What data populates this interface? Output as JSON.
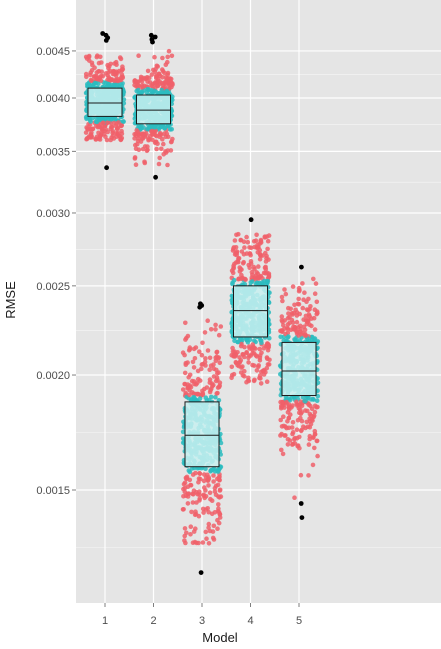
{
  "chart_data": {
    "type": "boxplot-jitter",
    "xlabel": "Model",
    "ylabel": "RMSE",
    "y_scale": "log",
    "ylim": [
      0.0011,
      0.0047
    ],
    "categories": [
      "1",
      "2",
      "3",
      "4",
      "5"
    ],
    "y_ticks": [
      0.0015,
      0.002,
      0.0025,
      0.003,
      0.0035,
      0.004,
      0.0045
    ],
    "y_tick_labels": [
      "0.0015",
      "0.0020",
      "0.0025",
      "0.0030",
      "0.0035",
      "0.0040",
      "0.0045"
    ],
    "grid": true,
    "colors": {
      "panel_bg": "#e5e5e5",
      "grid": "#ffffff",
      "inner_points": "#2cbcbf",
      "outer_points": "#f0606a",
      "outliers": "#000000",
      "box_fill": "#c8f0f0",
      "box_stroke": "#1a1a1a"
    },
    "boxes": [
      {
        "category": "1",
        "min": 0.00336,
        "q1": 0.00382,
        "median": 0.00395,
        "q3": 0.0041,
        "max": 0.0047,
        "whisker_low": 0.0036,
        "whisker_high": 0.00445,
        "outliers": [
          0.00336,
          0.00462,
          0.00465,
          0.00468,
          0.0047
        ]
      },
      {
        "category": "2",
        "min": 0.00328,
        "q1": 0.00375,
        "median": 0.00388,
        "q3": 0.00403,
        "max": 0.00468,
        "whisker_low": 0.00335,
        "whisker_high": 0.00455,
        "outliers": [
          0.00328,
          0.0046,
          0.00463,
          0.00466,
          0.00468
        ]
      },
      {
        "category": "3",
        "min": 0.00122,
        "q1": 0.00159,
        "median": 0.00172,
        "q3": 0.00187,
        "max": 0.00239,
        "whisker_low": 0.0013,
        "whisker_high": 0.00234,
        "outliers": [
          0.00122,
          0.00237,
          0.00238,
          0.00239
        ]
      },
      {
        "category": "4",
        "min": 0.00185,
        "q1": 0.0022,
        "median": 0.00235,
        "q3": 0.0025,
        "max": 0.00295,
        "whisker_low": 0.00195,
        "whisker_high": 0.00285,
        "outliers": [
          0.00295
        ]
      },
      {
        "category": "5",
        "min": 0.0014,
        "q1": 0.0019,
        "median": 0.00202,
        "q3": 0.00217,
        "max": 0.00262,
        "whisker_low": 0.00146,
        "whisker_high": 0.00255,
        "outliers": [
          0.00262,
          0.00145,
          0.0014
        ]
      }
    ]
  }
}
